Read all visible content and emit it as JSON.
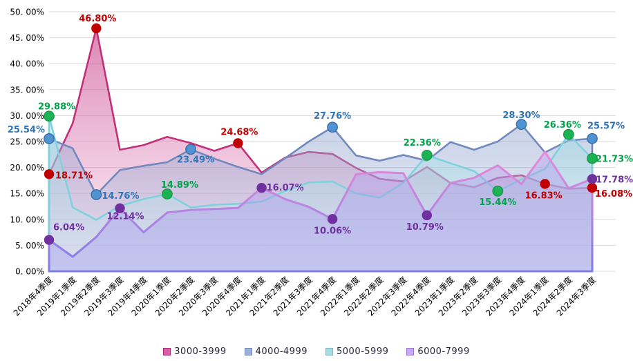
{
  "page": {
    "background": "#ffffff"
  },
  "chart_data": {
    "type": "area",
    "title": "",
    "grid": true,
    "legend_position": "bottom",
    "x_labels": [
      "2018年4季度",
      "2019年1季度",
      "2019年2季度",
      "2019年3季度",
      "2019年4季度",
      "2020年1季度",
      "2020年2季度",
      "2020年3季度",
      "2020年4季度",
      "2021年1季度",
      "2021年2季度",
      "2021年3季度",
      "2021年4季度",
      "2022年1季度",
      "2022年2季度",
      "2022年3季度",
      "2022年4季度",
      "2023年1季度",
      "2023年2季度",
      "2023年3季度",
      "2023年4季度",
      "2024年1季度",
      "2024年2季度",
      "2024年3季度"
    ],
    "y_axis": {
      "min": 0,
      "max": 50,
      "step": 5,
      "tick_labels": [
        "0. 00%",
        "5. 00%",
        "10. 00%",
        "15. 00%",
        "20. 00%",
        "25. 00%",
        "30. 00%",
        "35. 00%",
        "40. 00%",
        "45. 00%",
        "50. 00%"
      ]
    },
    "series": [
      {
        "name": "3000-3999",
        "values": [
          18.71,
          28.5,
          46.8,
          23.4,
          24.3,
          25.9,
          24.7,
          23.2,
          24.68,
          19.0,
          21.9,
          23.0,
          22.6,
          19.9,
          17.8,
          17.3,
          20.1,
          17.0,
          16.2,
          18.0,
          18.5,
          16.83,
          15.9,
          16.08
        ],
        "line_color": "#c13078",
        "line_width": 2.6,
        "fill_top": "rgba(194,44,124,0.62)",
        "fill_bottom": "rgba(240,190,225,0.30)",
        "marker_color": "#c00000",
        "marker_stroke": "none",
        "label_color": "#c00000",
        "swatch": "#d75fa4",
        "swatch_border": "#a42878",
        "labels": [
          {
            "i": 0,
            "text": "18.71%",
            "anchor": "start",
            "dx": 9,
            "dy": 6
          },
          {
            "i": 2,
            "text": "46.80%",
            "anchor": "middle",
            "dx": 2,
            "dy": -10
          },
          {
            "i": 8,
            "text": "24.68%",
            "anchor": "middle",
            "dx": 2,
            "dy": -12
          },
          {
            "i": 21,
            "text": "16.83%",
            "anchor": "middle",
            "dx": -2,
            "dy": 21
          },
          {
            "i": 23,
            "text": "16.08%",
            "anchor": "start",
            "dx": 4,
            "dy": 13
          }
        ]
      },
      {
        "name": "4000-4999",
        "values": [
          25.54,
          23.7,
          14.76,
          19.5,
          20.3,
          21.0,
          23.49,
          21.7,
          20.1,
          18.7,
          21.8,
          25.0,
          27.76,
          22.3,
          21.3,
          22.4,
          21.3,
          24.9,
          23.4,
          25.0,
          28.3,
          22.9,
          25.2,
          25.57
        ],
        "line_color": "#7289bd",
        "line_width": 2.6,
        "fill_top": "rgba(110,135,188,0.60)",
        "fill_bottom": "rgba(185,198,228,0.32)",
        "marker_color": "#4f93d2",
        "marker_stroke": "#3a6ea5",
        "label_color": "#2e74b5",
        "swatch": "#9db1d6",
        "swatch_border": "#6d86b4",
        "labels": [
          {
            "i": 0,
            "text": "25.54%",
            "anchor": "end",
            "dx": -6,
            "dy": -9
          },
          {
            "i": 2,
            "text": "14.76%",
            "anchor": "start",
            "dx": 8,
            "dy": 6
          },
          {
            "i": 6,
            "text": "23.49%",
            "anchor": "middle",
            "dx": 7,
            "dy": 19
          },
          {
            "i": 12,
            "text": "27.76%",
            "anchor": "middle",
            "dx": 0,
            "dy": -12
          },
          {
            "i": 20,
            "text": "28.30%",
            "anchor": "middle",
            "dx": 0,
            "dy": -9
          },
          {
            "i": 23,
            "text": "25.57%",
            "anchor": "start",
            "dx": -7,
            "dy": -14
          }
        ]
      },
      {
        "name": "5000-5999",
        "values": [
          29.88,
          12.3,
          9.9,
          12.6,
          13.9,
          14.89,
          12.3,
          12.8,
          13.0,
          13.4,
          15.5,
          17.1,
          17.3,
          15.0,
          14.2,
          17.0,
          22.36,
          20.8,
          19.3,
          15.44,
          17.7,
          19.7,
          26.36,
          21.73
        ],
        "line_color": "#7fd2db",
        "line_width": 2.6,
        "fill_top": "rgba(120,205,216,0.55)",
        "fill_bottom": "rgba(195,232,240,0.30)",
        "marker_color": "#1db254",
        "marker_stroke": "#169a47",
        "label_color": "#00a44a",
        "swatch": "#aadce4",
        "swatch_border": "#72bac6",
        "labels": [
          {
            "i": 0,
            "text": "29.88%",
            "anchor": "start",
            "dx": -16,
            "dy": -10
          },
          {
            "i": 5,
            "text": "14.89%",
            "anchor": "start",
            "dx": -9,
            "dy": -9
          },
          {
            "i": 16,
            "text": "22.36%",
            "anchor": "middle",
            "dx": -7,
            "dy": -14
          },
          {
            "i": 19,
            "text": "15.44%",
            "anchor": "middle",
            "dx": 0,
            "dy": 20
          },
          {
            "i": 22,
            "text": "26.36%",
            "anchor": "middle",
            "dx": -9,
            "dy": -10
          },
          {
            "i": 23,
            "text": "21.73%",
            "anchor": "start",
            "dx": 5,
            "dy": 5
          }
        ]
      },
      {
        "name": "6000-7999",
        "values": [
          6.04,
          2.8,
          6.6,
          12.14,
          7.5,
          11.3,
          11.8,
          12.0,
          12.2,
          16.07,
          13.9,
          12.4,
          10.06,
          18.7,
          19.1,
          18.9,
          10.79,
          17.0,
          18.0,
          20.4,
          16.8,
          23.0,
          16.0,
          17.78
        ],
        "line_color": "#ee8bd8",
        "line_color_bottom": "#7f7ee8",
        "line_width": 3.1,
        "fill_top": "rgba(225,160,230,0.45)",
        "fill_bottom": "rgba(150,145,238,0.35)",
        "marker_color": "#7030a0",
        "marker_stroke": "none",
        "label_color": "#7030a0",
        "swatch": "#c9a9f2",
        "swatch_border": "#9674d4",
        "labels": [
          {
            "i": 0,
            "text": "6.04%",
            "anchor": "start",
            "dx": 6,
            "dy": -14
          },
          {
            "i": 3,
            "text": "12.14%",
            "anchor": "middle",
            "dx": 8,
            "dy": 16
          },
          {
            "i": 9,
            "text": "16.07%",
            "anchor": "start",
            "dx": 7,
            "dy": 4
          },
          {
            "i": 12,
            "text": "10.06%",
            "anchor": "middle",
            "dx": 0,
            "dy": 21
          },
          {
            "i": 16,
            "text": "10.79%",
            "anchor": "middle",
            "dx": -3,
            "dy": 21
          },
          {
            "i": 23,
            "text": "17.78%",
            "anchor": "start",
            "dx": 5,
            "dy": 5
          }
        ]
      }
    ]
  }
}
